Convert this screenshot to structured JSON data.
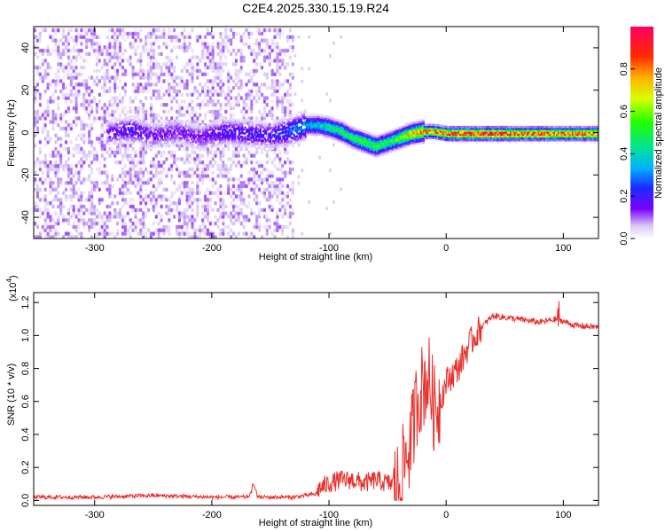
{
  "title": "C2E4.2025.330.15.19.R24",
  "chart_data": [
    {
      "type": "heatmap",
      "xlabel": "Height of straight line (km)",
      "ylabel": "Frequency (Hz)",
      "xlim": [
        -352,
        130
      ],
      "ylim": [
        -50,
        50
      ],
      "x_ticks": [
        -300,
        -200,
        -100,
        0,
        100
      ],
      "y_ticks": [
        -40,
        -20,
        0,
        20,
        40
      ],
      "colorbar": {
        "label": "Normalized spectral amplitude",
        "range": [
          0,
          1
        ],
        "ticks": [
          0.0,
          0.2,
          0.4,
          0.6,
          0.8
        ],
        "colormap": "rainbow"
      },
      "ridge": {
        "x": [
          -290,
          -270,
          -250,
          -230,
          -210,
          -190,
          -170,
          -150,
          -130,
          -120,
          -110,
          -100,
          -90,
          -80,
          -70,
          -60,
          -50,
          -40,
          -30,
          -20,
          -10,
          0,
          20,
          40,
          60,
          80,
          100,
          130
        ],
        "frequency": [
          0,
          2,
          -1,
          1,
          -2,
          1,
          0,
          -1,
          2,
          4,
          4,
          3,
          1,
          -2,
          -4,
          -6,
          -4,
          -2,
          0,
          1,
          1,
          0,
          0,
          0,
          0,
          0,
          0,
          0
        ],
        "amplitude": [
          0.15,
          0.2,
          0.15,
          0.15,
          0.15,
          0.2,
          0.2,
          0.2,
          0.3,
          0.35,
          0.4,
          0.45,
          0.5,
          0.5,
          0.55,
          0.55,
          0.5,
          0.6,
          0.75,
          0.8,
          0.85,
          0.9,
          0.95,
          0.95,
          0.9,
          0.9,
          0.85,
          0.9
        ]
      },
      "noise_region": {
        "x_from": -352,
        "x_to": -130,
        "max_amplitude": 0.1
      }
    },
    {
      "type": "line",
      "xlabel": "Height of straight line (km)",
      "ylabel": "SNR (10 * v/v)",
      "multiplier_label": "(x10",
      "multiplier_exponent": "4",
      "xlim": [
        -352,
        130
      ],
      "ylim": [
        -0.03,
        1.26
      ],
      "x_ticks": [
        -300,
        -200,
        -100,
        0,
        100
      ],
      "y_ticks": [
        0.0,
        0.2,
        0.4,
        0.6,
        0.8,
        1.0,
        1.2
      ],
      "series": [
        {
          "color": "#e8302c",
          "x": [
            -352,
            -300,
            -250,
            -200,
            -170,
            -165,
            -160,
            -150,
            -130,
            -110,
            -100,
            -90,
            -80,
            -70,
            -60,
            -50,
            -45,
            -40,
            -35,
            -30,
            -25,
            -20,
            -15,
            -10,
            -5,
            0,
            10,
            20,
            30,
            40,
            60,
            80,
            95,
            110,
            130
          ],
          "y": [
            0.02,
            0.02,
            0.03,
            0.02,
            0.02,
            0.05,
            0.02,
            0.02,
            0.02,
            0.04,
            0.08,
            0.1,
            0.1,
            0.08,
            0.1,
            0.08,
            0.08,
            0.1,
            0.25,
            0.35,
            0.6,
            0.7,
            0.75,
            0.55,
            0.6,
            0.72,
            0.8,
            0.95,
            1.05,
            1.12,
            1.1,
            1.08,
            1.1,
            1.06,
            1.05
          ]
        }
      ]
    }
  ]
}
